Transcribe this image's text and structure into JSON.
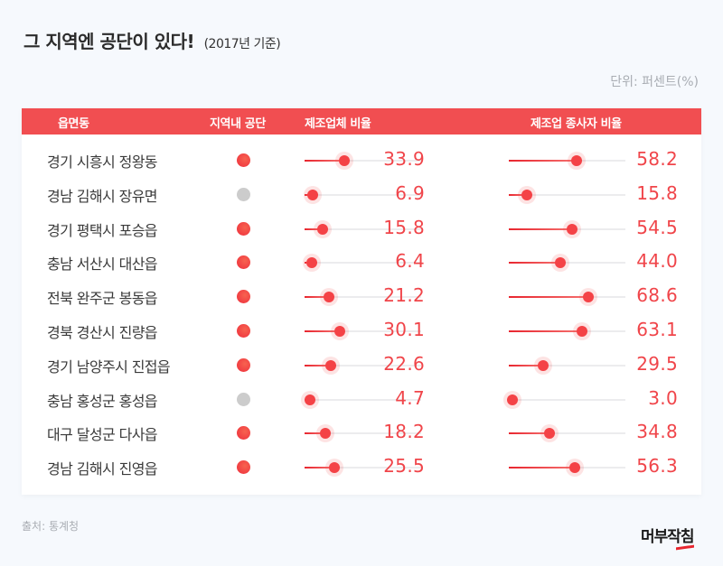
{
  "title": "그 지역엔 공단이 있다!",
  "subtitle": "(2017년 기준)",
  "unit": "단위: 퍼센트(%)",
  "colors": {
    "accent": "#f14e51",
    "value_text": "#f0454a",
    "dot_with_complex": "#f44246",
    "dot_without_complex": "#cccccc",
    "background": "#f6f9fd"
  },
  "table": {
    "headers": [
      "읍면동",
      "지역내 공단",
      "제조업체 비율",
      "제조업 종사자 비율"
    ],
    "rows": [
      {
        "name": "경기 시흥시 정왕동",
        "has_complex": true,
        "mfg_ratio": "33.9",
        "worker_ratio": "58.2"
      },
      {
        "name": "경남 김해시 장유면",
        "has_complex": false,
        "mfg_ratio": "6.9",
        "worker_ratio": "15.8"
      },
      {
        "name": "경기 평택시 포승읍",
        "has_complex": true,
        "mfg_ratio": "15.8",
        "worker_ratio": "54.5"
      },
      {
        "name": "충남 서산시 대산읍",
        "has_complex": true,
        "mfg_ratio": "6.4",
        "worker_ratio": "44.0"
      },
      {
        "name": "전북 완주군 봉동읍",
        "has_complex": true,
        "mfg_ratio": "21.2",
        "worker_ratio": "68.6"
      },
      {
        "name": "경북 경산시 진량읍",
        "has_complex": true,
        "mfg_ratio": "30.1",
        "worker_ratio": "63.1"
      },
      {
        "name": "경기 남양주시 진접읍",
        "has_complex": true,
        "mfg_ratio": "22.6",
        "worker_ratio": "29.5"
      },
      {
        "name": "충남 홍성군 홍성읍",
        "has_complex": false,
        "mfg_ratio": "4.7",
        "worker_ratio": "3.0"
      },
      {
        "name": "대구 달성군 다사읍",
        "has_complex": true,
        "mfg_ratio": "18.2",
        "worker_ratio": "34.8"
      },
      {
        "name": "경남 김해시 진영읍",
        "has_complex": true,
        "mfg_ratio": "25.5",
        "worker_ratio": "56.3"
      }
    ]
  },
  "footer": {
    "source": "출처: 통계청",
    "logo": "머부작침"
  },
  "chart_data": {
    "type": "table",
    "title": "그 지역엔 공단이 있다! (2017년 기준)",
    "unit": "퍼센트(%)",
    "categories": [
      "경기 시흥시 정왕동",
      "경남 김해시 장유면",
      "경기 평택시 포승읍",
      "충남 서산시 대산읍",
      "전북 완주군 봉동읍",
      "경북 경산시 진량읍",
      "경기 남양주시 진접읍",
      "충남 홍성군 홍성읍",
      "대구 달성군 다사읍",
      "경남 김해시 진영읍"
    ],
    "series": [
      {
        "name": "지역내 공단",
        "values": [
          true,
          false,
          true,
          true,
          true,
          true,
          true,
          false,
          true,
          true
        ]
      },
      {
        "name": "제조업체 비율",
        "values": [
          33.9,
          6.9,
          15.8,
          6.4,
          21.2,
          30.1,
          22.6,
          4.7,
          18.2,
          25.5
        ]
      },
      {
        "name": "제조업 종사자 비율",
        "values": [
          58.2,
          15.8,
          54.5,
          44.0,
          68.6,
          63.1,
          29.5,
          3.0,
          34.8,
          56.3
        ]
      }
    ],
    "xlim": [
      0,
      100
    ],
    "source": "통계청"
  }
}
